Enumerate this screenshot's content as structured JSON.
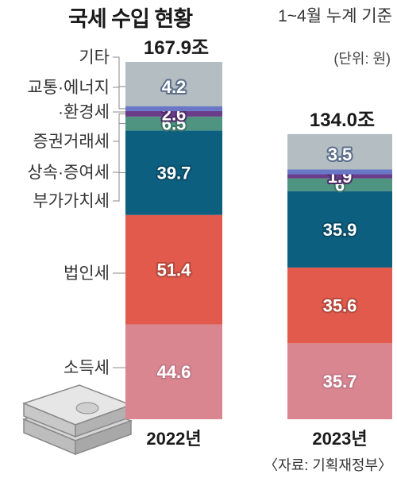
{
  "header": {
    "title": "국세 수입 현황",
    "subtitle": "1~4월 누계 기준",
    "unit": "(단위: 원)",
    "source": "〈자료: 기획재정부〉"
  },
  "chart_data": {
    "type": "bar",
    "stacked": true,
    "categories": [
      "2022년",
      "2023년"
    ],
    "totals": [
      "167.9조",
      "134.0조"
    ],
    "series": [
      {
        "name": "소득세",
        "values": [
          44.6,
          35.7
        ],
        "color": "#d98691"
      },
      {
        "name": "법인세",
        "values": [
          51.4,
          35.6
        ],
        "color": "#e25a4c"
      },
      {
        "name": "부가가치세",
        "values": [
          39.7,
          35.9
        ],
        "color": "#0d5f80"
      },
      {
        "name": "상속·증여세",
        "values": [
          6.5,
          6.0
        ],
        "color": "#4f9381"
      },
      {
        "name": "증권거래세",
        "values": [
          2.6,
          1.9
        ],
        "color": "#6a3d8a"
      },
      {
        "name": "·환경세",
        "values": [
          null,
          null
        ],
        "color": "#6a3d8a"
      },
      {
        "name": "교통·에너지",
        "values": [
          null,
          null
        ],
        "color": "#6a76c6"
      },
      {
        "name": "기타",
        "values": [
          4.2,
          3.5
        ],
        "color": "#b3bdc2"
      }
    ],
    "label_outline_colors": [
      "#c47a86",
      "#b5483c",
      "#0a4a64",
      "#3a7566",
      "#4d2a66",
      "#4d2a66",
      "#4f5aa2",
      "#5a6e8a"
    ],
    "ylim": [
      0,
      167.9
    ],
    "grid": false,
    "legend": "left"
  }
}
